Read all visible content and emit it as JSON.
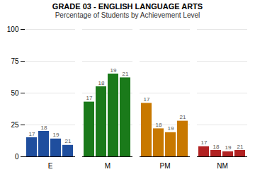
{
  "chart_data": {
    "type": "bar",
    "title": "GRADE 03 - ENGLISH LANGUAGE ARTS",
    "subtitle": "Percentage of Students by Achievement Level",
    "categories": [
      "E",
      "M",
      "PM",
      "NM"
    ],
    "series": [
      {
        "name": "17",
        "values": [
          15,
          43,
          42,
          8
        ]
      },
      {
        "name": "18",
        "values": [
          20,
          55,
          22,
          5
        ]
      },
      {
        "name": "19",
        "values": [
          14,
          65,
          19,
          4
        ]
      },
      {
        "name": "21",
        "values": [
          9,
          62,
          28,
          5
        ]
      }
    ],
    "colors": [
      "#1f4e9e",
      "#1a7a1a",
      "#c87800",
      "#b22222"
    ],
    "ylim": [
      0,
      100
    ],
    "yticks": [
      0,
      25,
      50,
      75,
      100
    ],
    "grid": true
  }
}
